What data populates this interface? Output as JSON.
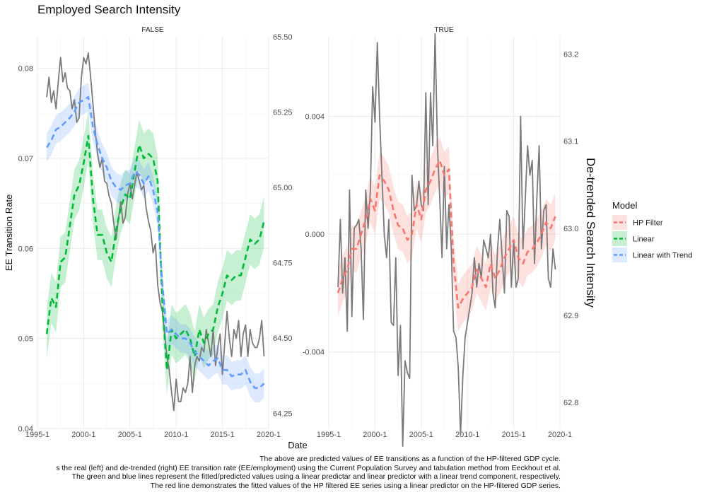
{
  "chart_data": {
    "type": "line",
    "title": "Employed Search Intensity",
    "xlabel": "Date",
    "ylabel": "EE Transition Rate",
    "secondary_ylabel": "De-trended Search Intensity",
    "x_ticks": [
      "1995-1",
      "2000-1",
      "2005-1",
      "2010-1",
      "2015-1",
      "2020-1"
    ],
    "legend": {
      "title": "Model",
      "position": "right",
      "entries": [
        {
          "name": "HP Filter",
          "color": "#F8766D"
        },
        {
          "name": "Linear",
          "color": "#00BA38"
        },
        {
          "name": "Linear with Trend",
          "color": "#619CFF"
        }
      ]
    },
    "observed_color": "#7a7a7a",
    "panels": [
      {
        "strip": "FALSE",
        "x_range": [
          1995.0,
          2020.0
        ],
        "y_range": [
          0.04,
          0.0835
        ],
        "y_ticks": [
          0.04,
          0.05,
          0.06,
          0.07,
          0.08
        ],
        "y_tick_labels": [
          "0.04",
          "0.05",
          "0.06",
          "0.07",
          "0.08"
        ],
        "y2_range": [
          64.2,
          65.5
        ],
        "y2_ticks": [
          "64.25",
          "64.50",
          "64.75",
          "65.00",
          "65.25",
          "65.50"
        ],
        "observed": {
          "x": [
            1996.0,
            1996.25,
            1996.5,
            1996.75,
            1997.0,
            1997.25,
            1997.5,
            1997.75,
            1998.0,
            1998.25,
            1998.5,
            1998.75,
            1999.0,
            1999.25,
            1999.5,
            1999.75,
            2000.0,
            2000.25,
            2000.5,
            2000.75,
            2001.0,
            2001.25,
            2001.5,
            2001.75,
            2002.0,
            2002.25,
            2002.5,
            2002.75,
            2003.0,
            2003.25,
            2003.5,
            2003.75,
            2004.0,
            2004.25,
            2004.5,
            2004.75,
            2005.0,
            2005.25,
            2005.5,
            2005.75,
            2006.0,
            2006.25,
            2006.5,
            2006.75,
            2007.0,
            2007.25,
            2007.5,
            2007.75,
            2008.0,
            2008.25,
            2008.5,
            2008.75,
            2009.0,
            2009.25,
            2009.5,
            2009.75,
            2010.0,
            2010.25,
            2010.5,
            2010.75,
            2011.0,
            2011.25,
            2011.5,
            2011.75,
            2012.0,
            2012.25,
            2012.5,
            2012.75,
            2013.0,
            2013.25,
            2013.5,
            2013.75,
            2014.0,
            2014.25,
            2014.5,
            2014.75,
            2015.0,
            2015.25,
            2015.5,
            2015.75,
            2016.0,
            2016.25,
            2016.5,
            2016.75,
            2017.0,
            2017.25,
            2017.5,
            2017.75,
            2018.0,
            2018.25,
            2018.5,
            2018.75,
            2019.0,
            2019.25,
            2019.5
          ],
          "y": [
            0.0768,
            0.079,
            0.0762,
            0.0775,
            0.0755,
            0.0785,
            0.0812,
            0.0785,
            0.0795,
            0.0778,
            0.0775,
            0.0755,
            0.0765,
            0.074,
            0.0745,
            0.079,
            0.0812,
            0.0805,
            0.0817,
            0.079,
            0.076,
            0.073,
            0.0705,
            0.069,
            0.07,
            0.0675,
            0.0672,
            0.0658,
            0.065,
            0.0628,
            0.061,
            0.0632,
            0.0652,
            0.0628,
            0.0635,
            0.066,
            0.0672,
            0.0655,
            0.067,
            0.0685,
            0.0675,
            0.0665,
            0.067,
            0.0645,
            0.063,
            0.062,
            0.0595,
            0.0605,
            0.056,
            0.054,
            0.053,
            0.0505,
            0.048,
            0.0465,
            0.044,
            0.042,
            0.0455,
            0.043,
            0.043,
            0.0445,
            0.044,
            0.045,
            0.048,
            0.044,
            0.047,
            0.048,
            0.0475,
            0.049,
            0.0485,
            0.051,
            0.0495,
            0.048,
            0.051,
            0.047,
            0.049,
            0.0505,
            0.046,
            0.0495,
            0.053,
            0.05,
            0.048,
            0.051,
            0.05,
            0.052,
            0.048,
            0.0505,
            0.0515,
            0.048,
            0.051,
            0.0495,
            0.049,
            0.049,
            0.05,
            0.052,
            0.048
          ]
        },
        "series": [
          {
            "name": "Linear",
            "x": [
              1996.0,
              1996.5,
              1997.0,
              1997.5,
              1998.0,
              1998.5,
              1999.0,
              1999.5,
              2000.0,
              2000.5,
              2001.0,
              2001.5,
              2002.0,
              2002.5,
              2003.0,
              2003.5,
              2004.0,
              2004.5,
              2005.0,
              2005.5,
              2006.0,
              2006.5,
              2007.0,
              2007.5,
              2008.0,
              2008.5,
              2009.0,
              2009.5,
              2010.0,
              2010.5,
              2011.0,
              2011.5,
              2012.0,
              2012.5,
              2013.0,
              2013.5,
              2014.0,
              2014.5,
              2015.0,
              2015.5,
              2016.0,
              2016.5,
              2017.0,
              2017.5,
              2018.0,
              2018.5,
              2019.0,
              2019.5
            ],
            "y": [
              0.0505,
              0.0545,
              0.0535,
              0.0585,
              0.059,
              0.0625,
              0.066,
              0.067,
              0.0695,
              0.0725,
              0.0655,
              0.0615,
              0.0615,
              0.0595,
              0.0585,
              0.062,
              0.0645,
              0.066,
              0.0655,
              0.0685,
              0.0715,
              0.07,
              0.0705,
              0.07,
              0.0675,
              0.054,
              0.0465,
              0.051,
              0.05,
              0.0505,
              0.051,
              0.05,
              0.048,
              0.051,
              0.0495,
              0.0505,
              0.051,
              0.0535,
              0.055,
              0.057,
              0.0565,
              0.057,
              0.057,
              0.059,
              0.061,
              0.0605,
              0.061,
              0.063
            ],
            "band": 0.0028
          },
          {
            "name": "Linear with Trend",
            "x": [
              1996.0,
              1996.5,
              1997.0,
              1997.5,
              1998.0,
              1998.5,
              1999.0,
              1999.5,
              2000.0,
              2000.5,
              2001.0,
              2001.5,
              2002.0,
              2002.5,
              2003.0,
              2003.5,
              2004.0,
              2004.5,
              2005.0,
              2005.5,
              2006.0,
              2006.5,
              2007.0,
              2007.5,
              2008.0,
              2008.5,
              2009.0,
              2009.5,
              2010.0,
              2010.5,
              2011.0,
              2011.5,
              2012.0,
              2012.5,
              2013.0,
              2013.5,
              2014.0,
              2014.5,
              2015.0,
              2015.5,
              2016.0,
              2016.5,
              2017.0,
              2017.5,
              2018.0,
              2018.5,
              2019.0,
              2019.5
            ],
            "y": [
              0.0712,
              0.072,
              0.0732,
              0.0735,
              0.074,
              0.0745,
              0.0752,
              0.0762,
              0.0765,
              0.0768,
              0.0735,
              0.0715,
              0.07,
              0.069,
              0.0675,
              0.0668,
              0.0665,
              0.067,
              0.0672,
              0.0685,
              0.0682,
              0.0672,
              0.068,
              0.0665,
              0.064,
              0.056,
              0.0505,
              0.051,
              0.0505,
              0.05,
              0.05,
              0.0495,
              0.0485,
              0.048,
              0.0475,
              0.047,
              0.0475,
              0.0478,
              0.0465,
              0.0465,
              0.0458,
              0.046,
              0.046,
              0.0465,
              0.0452,
              0.0445,
              0.0445,
              0.045
            ],
            "band": 0.0016
          }
        ]
      },
      {
        "strip": "TRUE",
        "x_range": [
          1995.0,
          2020.0
        ],
        "y_range": [
          -0.0066,
          0.0067
        ],
        "y_ticks": [
          -0.004,
          0.0,
          0.004
        ],
        "y_tick_labels": [
          "-0.004",
          "0.000",
          "0.004"
        ],
        "y2_range": [
          62.77,
          63.22
        ],
        "y2_ticks": [
          "62.8",
          "62.9",
          "63.0",
          "63.1",
          "63.2"
        ],
        "observed": {
          "x": [
            1996.0,
            1996.25,
            1996.5,
            1996.75,
            1997.0,
            1997.25,
            1997.5,
            1997.75,
            1998.0,
            1998.25,
            1998.5,
            1998.75,
            1999.0,
            1999.25,
            1999.5,
            1999.75,
            2000.0,
            2000.25,
            2000.5,
            2000.75,
            2001.0,
            2001.25,
            2001.5,
            2001.75,
            2002.0,
            2002.25,
            2002.5,
            2002.75,
            2003.0,
            2003.25,
            2003.5,
            2003.75,
            2004.0,
            2004.25,
            2004.5,
            2004.75,
            2005.0,
            2005.25,
            2005.5,
            2005.75,
            2006.0,
            2006.25,
            2006.5,
            2006.75,
            2007.0,
            2007.25,
            2007.5,
            2007.75,
            2008.0,
            2008.25,
            2008.5,
            2008.75,
            2009.0,
            2009.25,
            2009.5,
            2009.75,
            2010.0,
            2010.25,
            2010.5,
            2010.75,
            2011.0,
            2011.25,
            2011.5,
            2011.75,
            2012.0,
            2012.25,
            2012.5,
            2012.75,
            2013.0,
            2013.25,
            2013.5,
            2013.75,
            2014.0,
            2014.25,
            2014.5,
            2014.75,
            2015.0,
            2015.25,
            2015.5,
            2015.75,
            2016.0,
            2016.25,
            2016.5,
            2016.75,
            2017.0,
            2017.25,
            2017.5,
            2017.75,
            2018.0,
            2018.25,
            2018.5,
            2018.75,
            2019.0,
            2019.25,
            2019.5
          ],
          "y": [
            -0.0018,
            0.0005,
            -0.002,
            -0.0008,
            -0.0033,
            0.0015,
            -0.0028,
            0.0002,
            0.0003,
            0.0005,
            -0.0005,
            -0.0029,
            0.0015,
            0.0002,
            0.0015,
            0.005,
            0.0038,
            0.0065,
            0.004,
            0.002,
            0.0,
            -0.0008,
            0.0005,
            -0.003,
            -0.0031,
            -0.0008,
            -0.0048,
            -0.0031,
            -0.0072,
            -0.0043,
            -0.0047,
            -0.0049,
            0.002,
            0.0008,
            0.001,
            0.0018,
            0.001,
            0.0008,
            0.0048,
            0.001,
            0.0048,
            0.003,
            0.0068,
            0.003,
            0.0012,
            -0.0008,
            0.0023,
            -0.0005,
            0.001,
            -0.0005,
            -0.0033,
            -0.0035,
            -0.0045,
            -0.0068,
            -0.0048,
            -0.0035,
            -0.003,
            -0.0025,
            -0.002,
            -0.0008,
            -0.0018,
            -0.001,
            -0.0015,
            -0.0002,
            -0.0005,
            -0.0008,
            0.0,
            -0.002,
            -0.0025,
            -0.0005,
            0.0005,
            -0.0008,
            -0.002,
            0.0008,
            0.0006,
            -0.0018,
            -0.0002,
            -0.0018,
            -0.0015,
            0.004,
            -0.0005,
            0.0012,
            0.003,
            0.002,
            0.0025,
            -0.001,
            0.0012,
            0.003,
            -0.0005,
            0.0008,
            0.001,
            -0.0015,
            -0.0018,
            -0.0005,
            -0.0012
          ]
        },
        "series": [
          {
            "name": "HP Filter",
            "x": [
              1996.0,
              1996.5,
              1997.0,
              1997.5,
              1998.0,
              1998.5,
              1999.0,
              1999.5,
              2000.0,
              2000.5,
              2001.0,
              2001.5,
              2002.0,
              2002.5,
              2003.0,
              2003.5,
              2004.0,
              2004.5,
              2005.0,
              2005.5,
              2006.0,
              2006.5,
              2007.0,
              2007.5,
              2008.0,
              2008.5,
              2009.0,
              2009.5,
              2010.0,
              2010.5,
              2011.0,
              2011.5,
              2012.0,
              2012.5,
              2013.0,
              2013.5,
              2014.0,
              2014.5,
              2015.0,
              2015.5,
              2016.0,
              2016.5,
              2017.0,
              2017.5,
              2018.0,
              2018.5,
              2019.0,
              2019.5
            ],
            "y": [
              -0.002,
              -0.0015,
              -0.0012,
              -0.0005,
              -0.0005,
              0.0,
              0.0005,
              0.0012,
              0.0008,
              0.002,
              0.0018,
              0.0015,
              0.0008,
              0.0003,
              0.0002,
              -0.0002,
              0.0,
              0.001,
              0.0005,
              0.0015,
              0.0018,
              0.0022,
              0.0025,
              0.002,
              0.0022,
              -0.001,
              -0.0025,
              -0.0022,
              -0.002,
              -0.0018,
              -0.0012,
              -0.0015,
              -0.0018,
              -0.001,
              -0.0015,
              -0.0012,
              -0.0008,
              -0.0005,
              -0.0002,
              -0.0008,
              -0.001,
              -0.0006,
              -0.0005,
              -0.0003,
              0.0,
              0.0004,
              0.0002,
              0.0006
            ],
            "band": 0.0008
          }
        ]
      }
    ],
    "caption": [
      "The above are predicted values of EE transitions as a function of the HP-filtered GDP cycle.",
      "s the real (left) and de-trended (right) EE transition rate (EE/employment) using the Current Population Survey and tabulation method from Eeckhout et al.",
      "The green and blue lines represent the fitted/predicted values using a linear predictar and linear predictor with a linear trend component, respectively.",
      "The red line demonstrates the fitted values of the HP filtered EE series using a linear predictor on the HP-filtered GDP series."
    ]
  }
}
